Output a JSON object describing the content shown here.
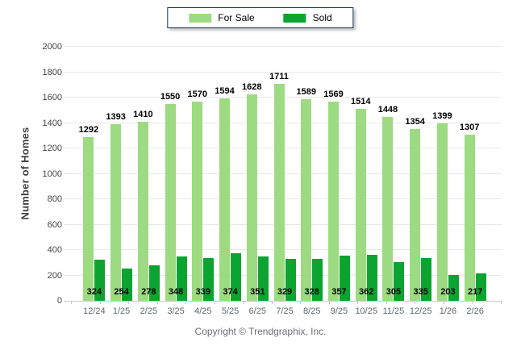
{
  "legend": {
    "for_sale_label": "For Sale",
    "sold_label": "Sold"
  },
  "chart_data": {
    "type": "bar",
    "title": "",
    "categories": [
      "12/24",
      "1/25",
      "2/25",
      "3/25",
      "4/25",
      "5/25",
      "6/25",
      "7/25",
      "8/25",
      "9/25",
      "10/25",
      "11/25",
      "12/25",
      "1/26",
      "2/26"
    ],
    "series": [
      {
        "name": "For Sale",
        "color": "#9cdb81",
        "values": [
          1292,
          1393,
          1410,
          1550,
          1570,
          1594,
          1628,
          1711,
          1589,
          1569,
          1514,
          1448,
          1354,
          1399,
          1307
        ]
      },
      {
        "name": "Sold",
        "color": "#0ba430",
        "values": [
          324,
          254,
          278,
          348,
          339,
          374,
          351,
          329,
          328,
          357,
          362,
          305,
          335,
          203,
          217
        ]
      }
    ],
    "xlabel": "",
    "ylabel": "Number of Homes",
    "ylim": [
      0,
      2000
    ],
    "ytick_step": 200,
    "grid": true,
    "legend_position": "top-center"
  },
  "colors": {
    "for_sale": "#9cdb81",
    "sold": "#0ba430",
    "gridline": "#e8e8e8",
    "axis_line": "#c9c9c9",
    "legend_border": "#17375e",
    "x_label_text": "#5c6670",
    "value_label_text": "#000000"
  },
  "footer": {
    "copyright": "Copyright © Trendgraphix, Inc."
  }
}
